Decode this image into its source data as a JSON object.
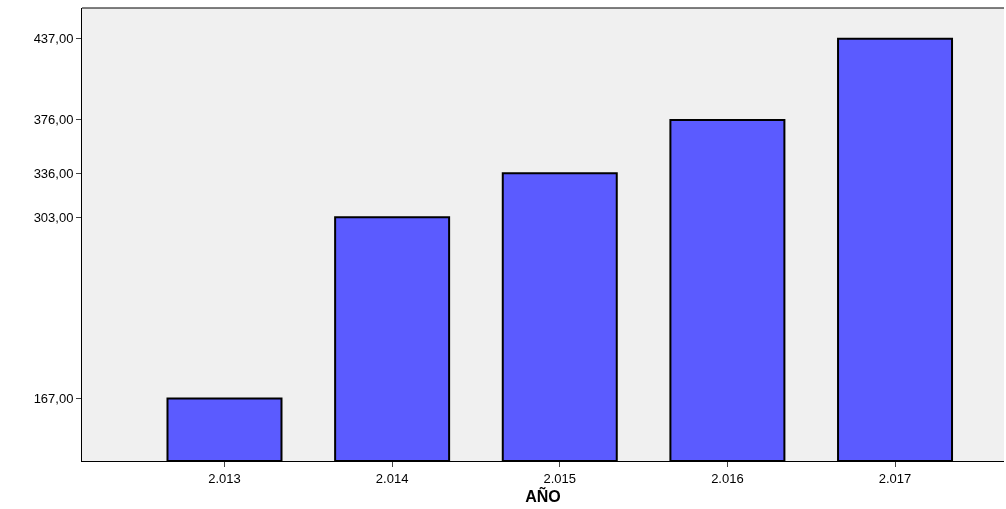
{
  "chart_data": {
    "type": "bar",
    "xlabel": "AÑO",
    "categories": [
      "2.013",
      "2.014",
      "2.015",
      "2.016",
      "2.017"
    ],
    "values": [
      167,
      303,
      336,
      376,
      437
    ],
    "color": "#5b5bff",
    "ylim": [
      120,
      460
    ],
    "yticks": [
      {
        "value": 167,
        "label": "167,00"
      },
      {
        "value": 303,
        "label": "303,00"
      },
      {
        "value": 336,
        "label": "336,00"
      },
      {
        "value": 376,
        "label": "376,00"
      },
      {
        "value": 437,
        "label": "437,00"
      }
    ],
    "grid": false,
    "legend": false
  }
}
